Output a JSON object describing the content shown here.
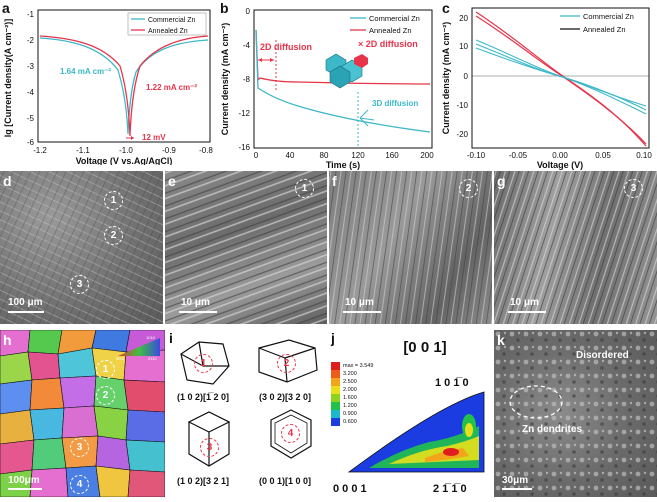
{
  "colors": {
    "commercial": "#3cb8c9",
    "annealed": "#e8344a",
    "dark": "#111111"
  },
  "panels": {
    "a": {
      "label": "a",
      "legend": [
        "Commercial Zn",
        "Annealed Zn"
      ],
      "xlabel": "Voltage (V vs.Ag/AgCl)",
      "ylabel": "lg [Current density(A cm⁻²)]",
      "xticks": [
        "-1.2",
        "-1.1",
        "-1.0",
        "-0.9",
        "-0.8"
      ],
      "yticks": [
        "-1",
        "-2",
        "-3",
        "-4",
        "-5",
        "-6"
      ],
      "annot_commercial": "1.64 mA cm⁻²",
      "annot_annealed": "1.22 mA cm⁻²",
      "annot_shift": "12 mV"
    },
    "b": {
      "label": "b",
      "legend": [
        "Commercial Zn",
        "Annealed Zn"
      ],
      "xlabel": "Time (s)",
      "ylabel": "Current density (mA cm⁻²)",
      "xticks": [
        "0",
        "40",
        "80",
        "120",
        "160",
        "200"
      ],
      "yticks": [
        "0",
        "-4",
        "-8",
        "-12",
        "-16"
      ],
      "annot_2d": "2D diffusion",
      "annot_x2d": "× 2D diffusion",
      "annot_3d": "3D diffusion"
    },
    "c": {
      "label": "c",
      "legend": [
        "Commercial Zn",
        "Annealed Zn"
      ],
      "xlabel": "Voltage (V)",
      "ylabel": "Current density (mA cm⁻²)",
      "xticks": [
        "-0.10",
        "-0.05",
        "0.00",
        "0.05",
        "0.10"
      ],
      "yticks": [
        "20",
        "10",
        "0",
        "-10",
        "-20"
      ]
    },
    "d": {
      "label": "d",
      "scale": "100 μm",
      "marks": [
        "1",
        "2",
        "3"
      ]
    },
    "e": {
      "label": "e",
      "scale": "10 μm",
      "mark": "1"
    },
    "f": {
      "label": "f",
      "scale": "10 μm",
      "mark": "2"
    },
    "g": {
      "label": "g",
      "scale": "10 μm",
      "mark": "3"
    },
    "h": {
      "label": "h",
      "scale": "100μm",
      "marks": [
        "1",
        "2",
        "3",
        "4"
      ],
      "legend_ticks": [
        "1010",
        "0001",
        "2110"
      ]
    },
    "i": {
      "label": "i",
      "marks": [
        "1",
        "2",
        "3",
        "4"
      ],
      "captions": [
        "(1 0 2)[1̅ 2 0]",
        "(3 0 2)[3 2 0]",
        "(1 0 2)[3 2 1]",
        "(0 0 1)[1 0 0]"
      ]
    },
    "j": {
      "label": "j",
      "title": "[0 0 1]",
      "corner_top": "1 0 1̅ 0",
      "corner_left": "0 0 0 1",
      "corner_right": "2 1̅ 1̅ 0",
      "scale_values": [
        "max = 3.549",
        "3.200",
        "2.500",
        "2.000",
        "1.600",
        "1.200",
        "0.900",
        "0.600"
      ]
    },
    "k": {
      "label": "k",
      "scale": "30μm",
      "annot_disordered": "Disordered",
      "annot_dendrites": "Zn dendrites"
    }
  }
}
